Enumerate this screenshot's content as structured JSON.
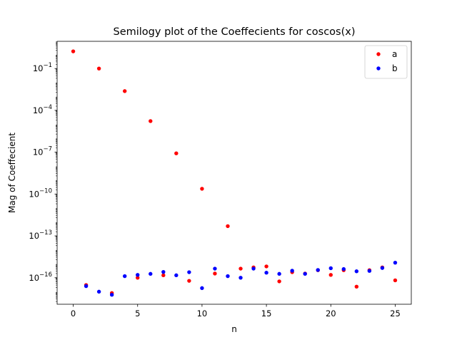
{
  "chart_data": {
    "type": "scatter",
    "title": "Semilogy plot of the Coeffecients for coscos(x)",
    "xlabel": "n",
    "ylabel": "Mag of Coeffecient",
    "xlim": [
      -1.25,
      26.25
    ],
    "ylim_log10": [
      -17.9,
      0.95
    ],
    "y_scale": "log",
    "x_ticks": [
      0,
      5,
      10,
      15,
      20,
      25
    ],
    "x_tick_labels": [
      "0",
      "5",
      "10",
      "15",
      "20",
      "25"
    ],
    "y_ticks_log10": [
      -16,
      -13,
      -10,
      -7,
      -4,
      -1
    ],
    "y_tick_labels": [
      {
        "base": "10",
        "exp": "−16"
      },
      {
        "base": "10",
        "exp": "−13"
      },
      {
        "base": "10",
        "exp": "−10"
      },
      {
        "base": "10",
        "exp": "−7"
      },
      {
        "base": "10",
        "exp": "−4"
      },
      {
        "base": "10",
        "exp": "−1"
      }
    ],
    "grid": false,
    "legend_position": "top-right",
    "series": [
      {
        "name": "a",
        "color": "#ff0000",
        "points": [
          {
            "x": 0,
            "y": 1.7
          },
          {
            "x": 1,
            "y": 3e-17
          },
          {
            "x": 2,
            "y": 0.1
          },
          {
            "x": 3,
            "y": 8e-18
          },
          {
            "x": 4,
            "y": 0.0024
          },
          {
            "x": 5,
            "y": 1e-16
          },
          {
            "x": 6,
            "y": 1.7e-05
          },
          {
            "x": 7,
            "y": 1.5e-16
          },
          {
            "x": 8,
            "y": 8.3e-08
          },
          {
            "x": 9,
            "y": 6e-17
          },
          {
            "x": 10,
            "y": 2.4e-10
          },
          {
            "x": 11,
            "y": 2e-16
          },
          {
            "x": 12,
            "y": 5e-13
          },
          {
            "x": 13,
            "y": 4.5e-16
          },
          {
            "x": 14,
            "y": 5.5e-16
          },
          {
            "x": 15,
            "y": 6.5e-16
          },
          {
            "x": 16,
            "y": 5.5e-17
          },
          {
            "x": 17,
            "y": 2.5e-16
          },
          {
            "x": 18,
            "y": 2e-16
          },
          {
            "x": 19,
            "y": 3.5e-16
          },
          {
            "x": 20,
            "y": 1.6e-16
          },
          {
            "x": 21,
            "y": 3.5e-16
          },
          {
            "x": 22,
            "y": 2.3e-17
          },
          {
            "x": 23,
            "y": 3.5e-16
          },
          {
            "x": 24,
            "y": 5.5e-16
          },
          {
            "x": 25,
            "y": 6.5e-17
          }
        ]
      },
      {
        "name": "b",
        "color": "#0000ff",
        "points": [
          {
            "x": 1,
            "y": 2.5e-17
          },
          {
            "x": 2,
            "y": 1e-17
          },
          {
            "x": 3,
            "y": 6e-18
          },
          {
            "x": 4,
            "y": 1.3e-16
          },
          {
            "x": 5,
            "y": 1.6e-16
          },
          {
            "x": 6,
            "y": 1.9e-16
          },
          {
            "x": 7,
            "y": 2.6e-16
          },
          {
            "x": 8,
            "y": 1.5e-16
          },
          {
            "x": 9,
            "y": 2.5e-16
          },
          {
            "x": 10,
            "y": 1.8e-17
          },
          {
            "x": 11,
            "y": 4.5e-16
          },
          {
            "x": 12,
            "y": 1.3e-16
          },
          {
            "x": 13,
            "y": 1e-16
          },
          {
            "x": 14,
            "y": 4.5e-16
          },
          {
            "x": 15,
            "y": 2.3e-16
          },
          {
            "x": 16,
            "y": 1.9e-16
          },
          {
            "x": 17,
            "y": 3.2e-16
          },
          {
            "x": 18,
            "y": 1.9e-16
          },
          {
            "x": 19,
            "y": 3.6e-16
          },
          {
            "x": 20,
            "y": 4.8e-16
          },
          {
            "x": 21,
            "y": 4.2e-16
          },
          {
            "x": 22,
            "y": 2.9e-16
          },
          {
            "x": 23,
            "y": 3.1e-16
          },
          {
            "x": 24,
            "y": 5e-16
          },
          {
            "x": 25,
            "y": 1.2e-15
          }
        ]
      }
    ]
  }
}
